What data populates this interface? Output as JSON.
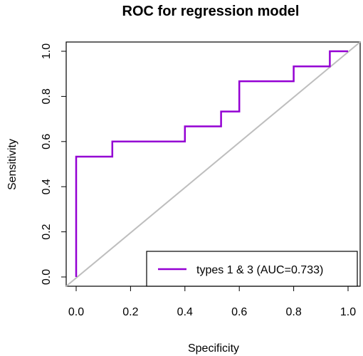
{
  "chart_data": {
    "type": "line",
    "title": "ROC for regression model",
    "xlabel": "Specificity",
    "ylabel": "Sensitivity",
    "xlim": [
      0,
      1
    ],
    "ylim": [
      0,
      1
    ],
    "x_ticks": [
      "0.0",
      "0.2",
      "0.4",
      "0.6",
      "0.8",
      "1.0"
    ],
    "y_ticks": [
      "0.0",
      "0.2",
      "0.4",
      "0.6",
      "0.8",
      "1.0"
    ],
    "grid": false,
    "legend_position": "bottom-right",
    "series": [
      {
        "name": "types 1 & 3 (AUC=0.733)",
        "color": "#9400D3",
        "x": [
          0.0,
          0.0,
          0.133,
          0.133,
          0.4,
          0.4,
          0.533,
          0.533,
          0.6,
          0.6,
          0.8,
          0.8,
          0.933,
          0.933,
          1.0
        ],
        "y": [
          0.0,
          0.533,
          0.533,
          0.6,
          0.6,
          0.667,
          0.667,
          0.733,
          0.733,
          0.867,
          0.867,
          0.933,
          0.933,
          1.0,
          1.0
        ]
      }
    ],
    "reference_line": {
      "x": [
        0,
        1
      ],
      "y": [
        0,
        1
      ],
      "color": "#BEBEBE"
    }
  }
}
